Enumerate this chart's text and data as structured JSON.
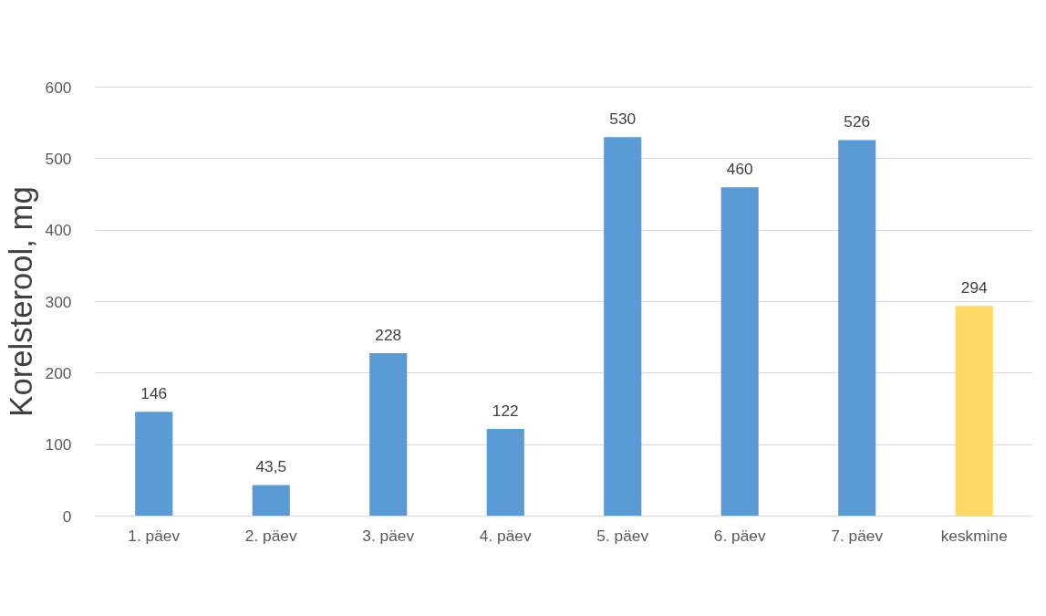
{
  "chart_data": {
    "type": "bar",
    "ylabel": "Korelsterool, mg",
    "categories": [
      "1. päev",
      "2. päev",
      "3. päev",
      "4. päev",
      "5. päev",
      "6. päev",
      "7. päev",
      "keskmine"
    ],
    "values": [
      146,
      43.5,
      228,
      122,
      530,
      460,
      526,
      294
    ],
    "value_labels": [
      "146",
      "43,5",
      "228",
      "122",
      "530",
      "460",
      "526",
      "294"
    ],
    "colors": [
      "#5b9bd5",
      "#5b9bd5",
      "#5b9bd5",
      "#5b9bd5",
      "#5b9bd5",
      "#5b9bd5",
      "#5b9bd5",
      "#ffd966"
    ],
    "ylim": [
      0,
      600
    ],
    "yticks": [
      0,
      100,
      200,
      300,
      400,
      500,
      600
    ],
    "grid": "y"
  }
}
